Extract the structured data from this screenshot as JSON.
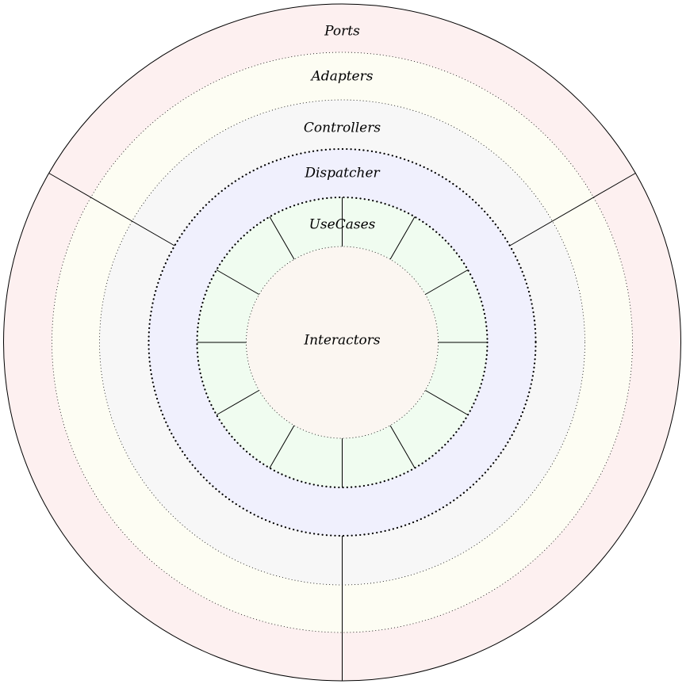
{
  "diagram": {
    "layers": [
      {
        "id": "ports",
        "label": "Ports",
        "fill": "#fdf0f0",
        "boundary": "solid"
      },
      {
        "id": "adapters",
        "label": "Adapters",
        "fill": "#fdfdf3",
        "boundary": "dotted"
      },
      {
        "id": "controllers",
        "label": "Controllers",
        "fill": "#f7f7f7",
        "boundary": "dotted"
      },
      {
        "id": "dispatcher",
        "label": "Dispatcher",
        "fill": "#f0f0fd",
        "boundary": "thick-dotted"
      },
      {
        "id": "usecases",
        "label": "UseCases",
        "fill": "#f0fcf0",
        "boundary": "thick-dotted"
      },
      {
        "id": "interactors",
        "label": "Interactors",
        "fill": "#fbf6f1",
        "boundary": "dotted"
      }
    ],
    "outer_sectors": 3,
    "usecase_sectors": 12,
    "colors": {
      "line": "#000000"
    }
  }
}
